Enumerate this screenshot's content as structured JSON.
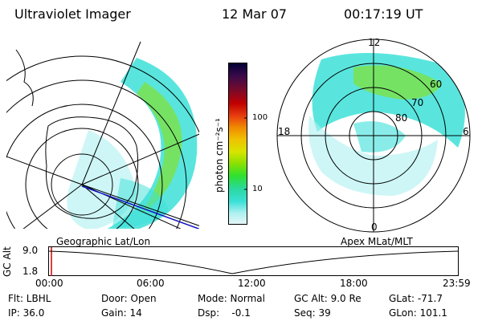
{
  "header": {
    "instrument": "Ultraviolet Imager",
    "date": "12 Mar 07",
    "time": "00:17:19 UT"
  },
  "left_panel": {
    "caption": "Geographic Lat/Lon"
  },
  "right_panel": {
    "caption": "Apex MLat/MLT",
    "mlt_labels": [
      "12",
      "18",
      "6",
      "0"
    ],
    "lat_labels": [
      "60",
      "70",
      "80"
    ]
  },
  "colorbar": {
    "unit_label": "photon cm⁻²s⁻¹",
    "ticks": [
      "100",
      "10"
    ],
    "colors": [
      "#000033",
      "#3a0a4a",
      "#7a0a2a",
      "#c00000",
      "#e84010",
      "#f08a00",
      "#f0c000",
      "#d8e400",
      "#8ee000",
      "#2fe02f",
      "#2ad8a0",
      "#3ce0d8",
      "#aef0f0",
      "#e6f6f6"
    ]
  },
  "altitude_plot": {
    "ylabel": "GC Alt",
    "y_ticks": [
      "9.0",
      "1.8"
    ],
    "x_ticks": [
      "00:00",
      "06:00",
      "12:00",
      "18:00",
      "23:59"
    ]
  },
  "footer": {
    "row1": {
      "flt": "Flt: LBHL",
      "door": "Door: Open",
      "mode": "Mode: Normal",
      "gcalt": "GC Alt: 9.0 Re",
      "glat": "GLat: -71.7"
    },
    "row2": {
      "ip": "IP: 36.0",
      "gain": "Gain: 14",
      "dsp": "Dsp:    -0.1",
      "seq": "Seq: 39",
      "glon": "GLon: 101.1"
    }
  }
}
